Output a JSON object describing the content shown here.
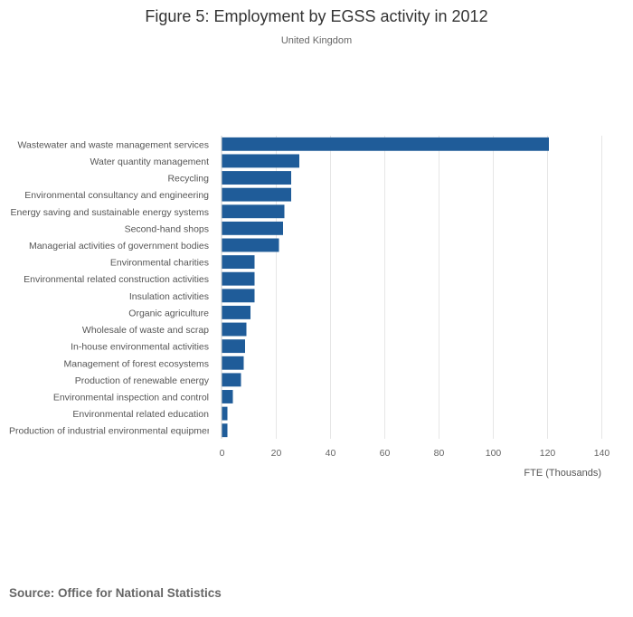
{
  "chart_data": {
    "type": "bar",
    "orientation": "horizontal",
    "title": "Figure 5: Employment by EGSS activity in 2012",
    "subtitle": "United Kingdom",
    "xlabel": "FTE (Thousands)",
    "ylabel": "",
    "xlim": [
      0,
      140
    ],
    "ticks": [
      0,
      20,
      40,
      60,
      80,
      100,
      120,
      140
    ],
    "grid": true,
    "bar_color": "#1f5c99",
    "categories": [
      "Wastewater and waste management services",
      "Water quantity management",
      "Recycling",
      "Environmental consultancy and engineering",
      "Energy saving and sustainable energy systems",
      "Second-hand shops",
      "Managerial activities of government bodies",
      "Environmental charities",
      "Environmental related construction activities",
      "Insulation activities",
      "Organic agriculture",
      "Wholesale of waste and scrap",
      "In-house environmental activities",
      "Management of forest ecosystems",
      "Production of renewable energy",
      "Environmental inspection and control",
      "Environmental related education",
      "Production of industrial environmental equipment"
    ],
    "values": [
      120.5,
      28.5,
      25.5,
      25.5,
      23,
      22.5,
      21,
      12,
      12,
      12,
      10.5,
      9,
      8.5,
      8,
      7,
      4,
      2,
      2
    ]
  },
  "source": "Source: Office for National Statistics"
}
